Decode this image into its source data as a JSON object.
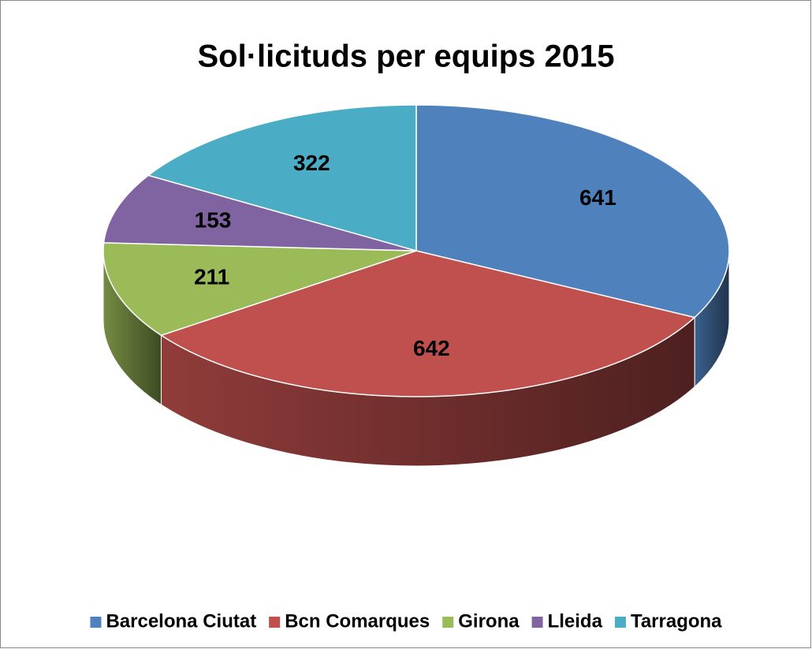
{
  "chart_data": {
    "type": "pie3d",
    "title": "Sol·licituds per equips 2015",
    "categories": [
      "Barcelona Ciutat",
      "Bcn Comarques",
      "Girona",
      "Lleida",
      "Tarragona"
    ],
    "values": [
      641,
      642,
      211,
      153,
      322
    ],
    "colors": [
      "#4f81bd",
      "#c0504d",
      "#9bbb59",
      "#8064a2",
      "#4bacc6"
    ],
    "legend": "bottom"
  }
}
